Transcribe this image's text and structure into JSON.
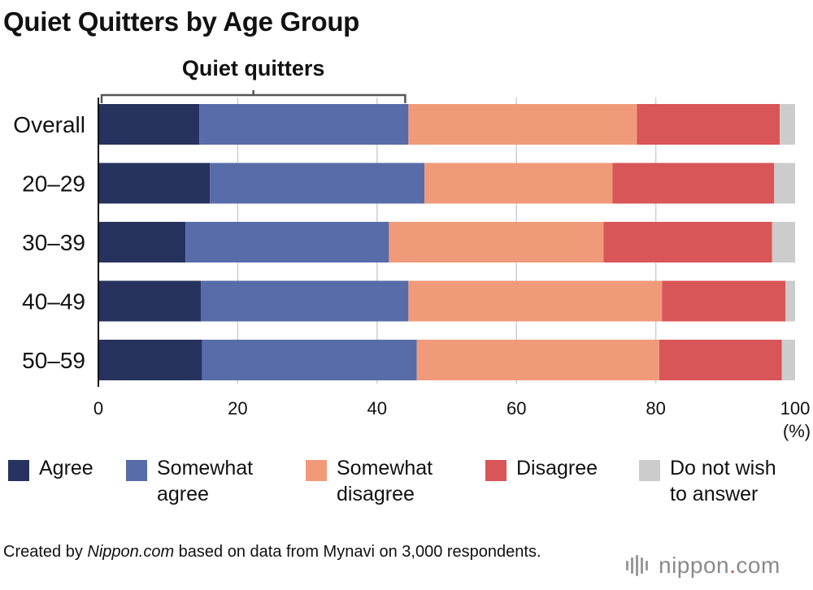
{
  "title": "Quiet Quitters by Age Group",
  "chart_data": {
    "type": "bar",
    "orientation": "horizontal",
    "stacked": true,
    "categories": [
      "Overall",
      "20–29",
      "30–39",
      "40–49",
      "50–59"
    ],
    "series": [
      {
        "name": "Agree",
        "color": "#27335e",
        "values": [
          14.5,
          16.0,
          12.5,
          14.7,
          14.9
        ]
      },
      {
        "name": "Somewhat agree",
        "color": "#576ca8",
        "values": [
          30.0,
          30.8,
          29.2,
          29.8,
          30.8
        ]
      },
      {
        "name": "Somewhat disagree",
        "color": "#f09a7a",
        "values": [
          32.8,
          27.0,
          30.8,
          36.4,
          34.8
        ]
      },
      {
        "name": "Disagree",
        "color": "#d85558",
        "values": [
          20.5,
          23.2,
          24.2,
          17.7,
          17.6
        ]
      },
      {
        "name": "Do not wish to answer",
        "color": "#cccccc",
        "values": [
          2.2,
          3.0,
          3.3,
          1.4,
          1.9
        ]
      }
    ],
    "xlim": [
      0,
      100
    ],
    "xticks": [
      "0",
      "20",
      "40",
      "60",
      "80",
      "100"
    ],
    "xunit": "(%)",
    "grid": true,
    "bracket_label": "Quiet quitters",
    "legend_position": "bottom"
  },
  "legend": [
    {
      "line1": "Agree",
      "line2": ""
    },
    {
      "line1": "Somewhat",
      "line2": "agree"
    },
    {
      "line1": "Somewhat",
      "line2": "disagree"
    },
    {
      "line1": "Disagree",
      "line2": ""
    },
    {
      "line1": "Do not wish",
      "line2": "to answer"
    }
  ],
  "footer": {
    "prefix": "Created by ",
    "source": "Nippon.com",
    "suffix": " based on data from Mynavi on 3,000 respondents."
  },
  "logo": {
    "name": "nippon",
    "dot": ".",
    "domain": "com"
  }
}
